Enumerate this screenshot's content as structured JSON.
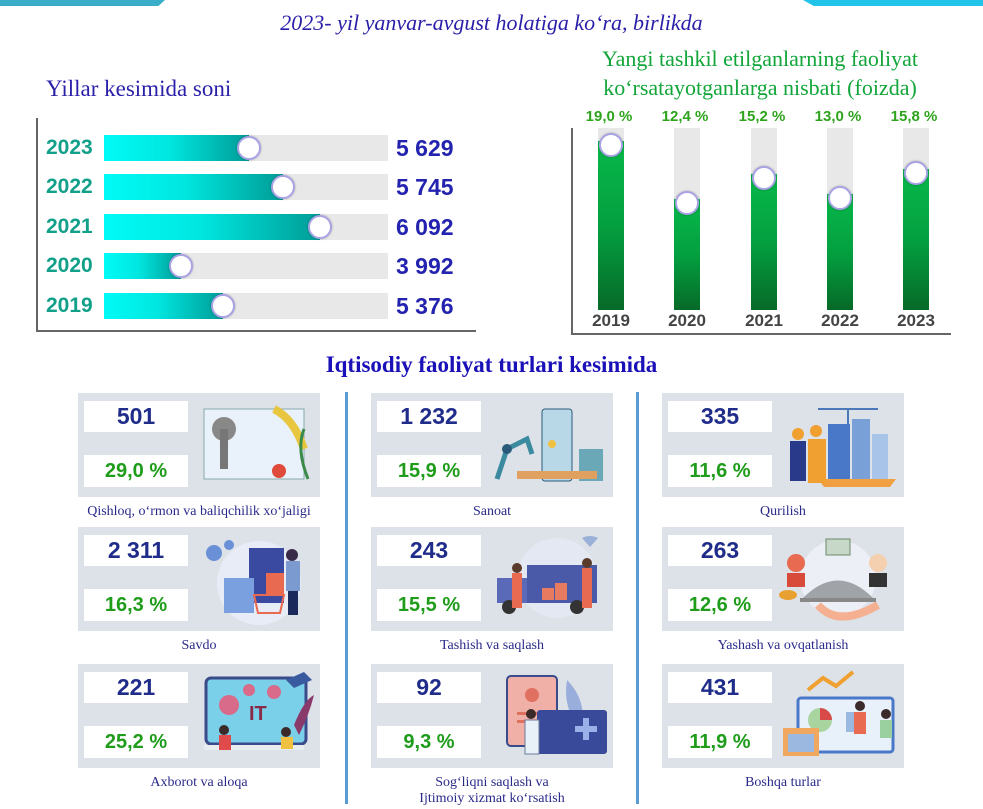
{
  "header": {
    "subtitle": "2023- yil yanvar-avgust holatiga ko‘ra, birlikda"
  },
  "left_panel": {
    "title": "Yillar kesimida soni"
  },
  "right_panel": {
    "title_line1": "Yangi tashkil etilganlarning faoliyat",
    "title_line2": "ko‘rsatayotganlarga nisbati (foizda)"
  },
  "section": {
    "title": "Iqtisodiy faoliyat turlari kesimida"
  },
  "chart_data": [
    {
      "type": "bar",
      "orientation": "horizontal",
      "title": "Yillar kesimida soni",
      "categories": [
        "2023",
        "2022",
        "2021",
        "2020",
        "2019"
      ],
      "values": [
        5629,
        5745,
        6092,
        3992,
        5376
      ],
      "value_labels": [
        "5 629",
        "5 745",
        "6 092",
        "3 992",
        "5 376"
      ],
      "fill_fractions": [
        0.51,
        0.63,
        0.76,
        0.27,
        0.42
      ],
      "colors": {
        "bar": "#00c9c3",
        "track": "#e8e8e8",
        "category_text": "#12a08a",
        "value_text": "#2323b0"
      }
    },
    {
      "type": "bar",
      "orientation": "vertical",
      "title": "Yangi tashkil etilganlarning faoliyat ko‘rsatayotganlarga nisbati (foizda)",
      "categories": [
        "2019",
        "2020",
        "2021",
        "2022",
        "2023"
      ],
      "values": [
        19.0,
        12.4,
        15.2,
        13.0,
        15.8
      ],
      "value_labels": [
        "19,0 %",
        "12,4 %",
        "15,2 %",
        "13,0 %",
        "15,8 %"
      ],
      "ylim": [
        0,
        20
      ],
      "colors": {
        "bar": "#08a842",
        "track": "#e8e8e8",
        "label_text": "#2ea41d"
      }
    }
  ],
  "sectors": [
    {
      "count": "501",
      "share": "29,0 %",
      "label_lines": [
        "Qishloq, o‘rmon va baliqchilik xo‘jaligi"
      ],
      "illustration": "agriculture-illustration"
    },
    {
      "count": "1 232",
      "share": "15,9 %",
      "label_lines": [
        "Sanoat"
      ],
      "illustration": "industry-illustration"
    },
    {
      "count": "335",
      "share": "11,6 %",
      "label_lines": [
        "Qurilish"
      ],
      "illustration": "construction-illustration"
    },
    {
      "count": "2 311",
      "share": "16,3 %",
      "label_lines": [
        "Savdo"
      ],
      "illustration": "trade-illustration"
    },
    {
      "count": "243",
      "share": "15,5 %",
      "label_lines": [
        "Tashish va saqlash"
      ],
      "illustration": "transport-illustration"
    },
    {
      "count": "263",
      "share": "12,6 %",
      "label_lines": [
        "Yashash va ovqatlanish"
      ],
      "illustration": "hospitality-illustration"
    },
    {
      "count": "221",
      "share": "25,2 %",
      "label_lines": [
        "Axborot va aloqa"
      ],
      "illustration": "it-illustration"
    },
    {
      "count": "92",
      "share": "9,3 %",
      "label_lines": [
        "Sog‘liqni saqlash va",
        "Ijtimoiy xizmat ko‘rsatish"
      ],
      "illustration": "healthcare-illustration"
    },
    {
      "count": "431",
      "share": "11,9 %",
      "label_lines": [
        "Boshqa turlar"
      ],
      "illustration": "analytics-illustration"
    }
  ]
}
